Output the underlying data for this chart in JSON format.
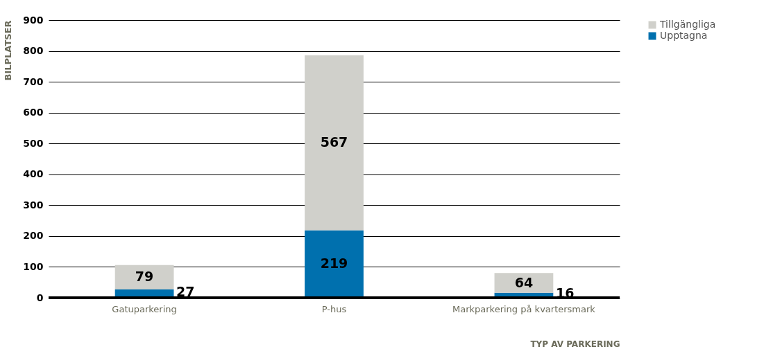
{
  "chart_data": {
    "type": "bar",
    "stacked": true,
    "xlabel": "TYP AV PARKERING",
    "ylabel": "BILPLATSER",
    "categories": [
      "Gatuparkering",
      "P-hus",
      "Markparkering på kvartersmark"
    ],
    "series": [
      {
        "name": "Upptagna",
        "color": "#0070ae",
        "values": [
          27,
          219,
          16
        ]
      },
      {
        "name": "Tillgängliga",
        "color": "#d0d0cb",
        "values": [
          79,
          567,
          64
        ]
      }
    ],
    "ylim": [
      0,
      900
    ],
    "yticks": [
      0,
      100,
      200,
      300,
      400,
      500,
      600,
      700,
      800,
      900
    ],
    "grid": "y",
    "legend": "right",
    "data_labels": true
  }
}
